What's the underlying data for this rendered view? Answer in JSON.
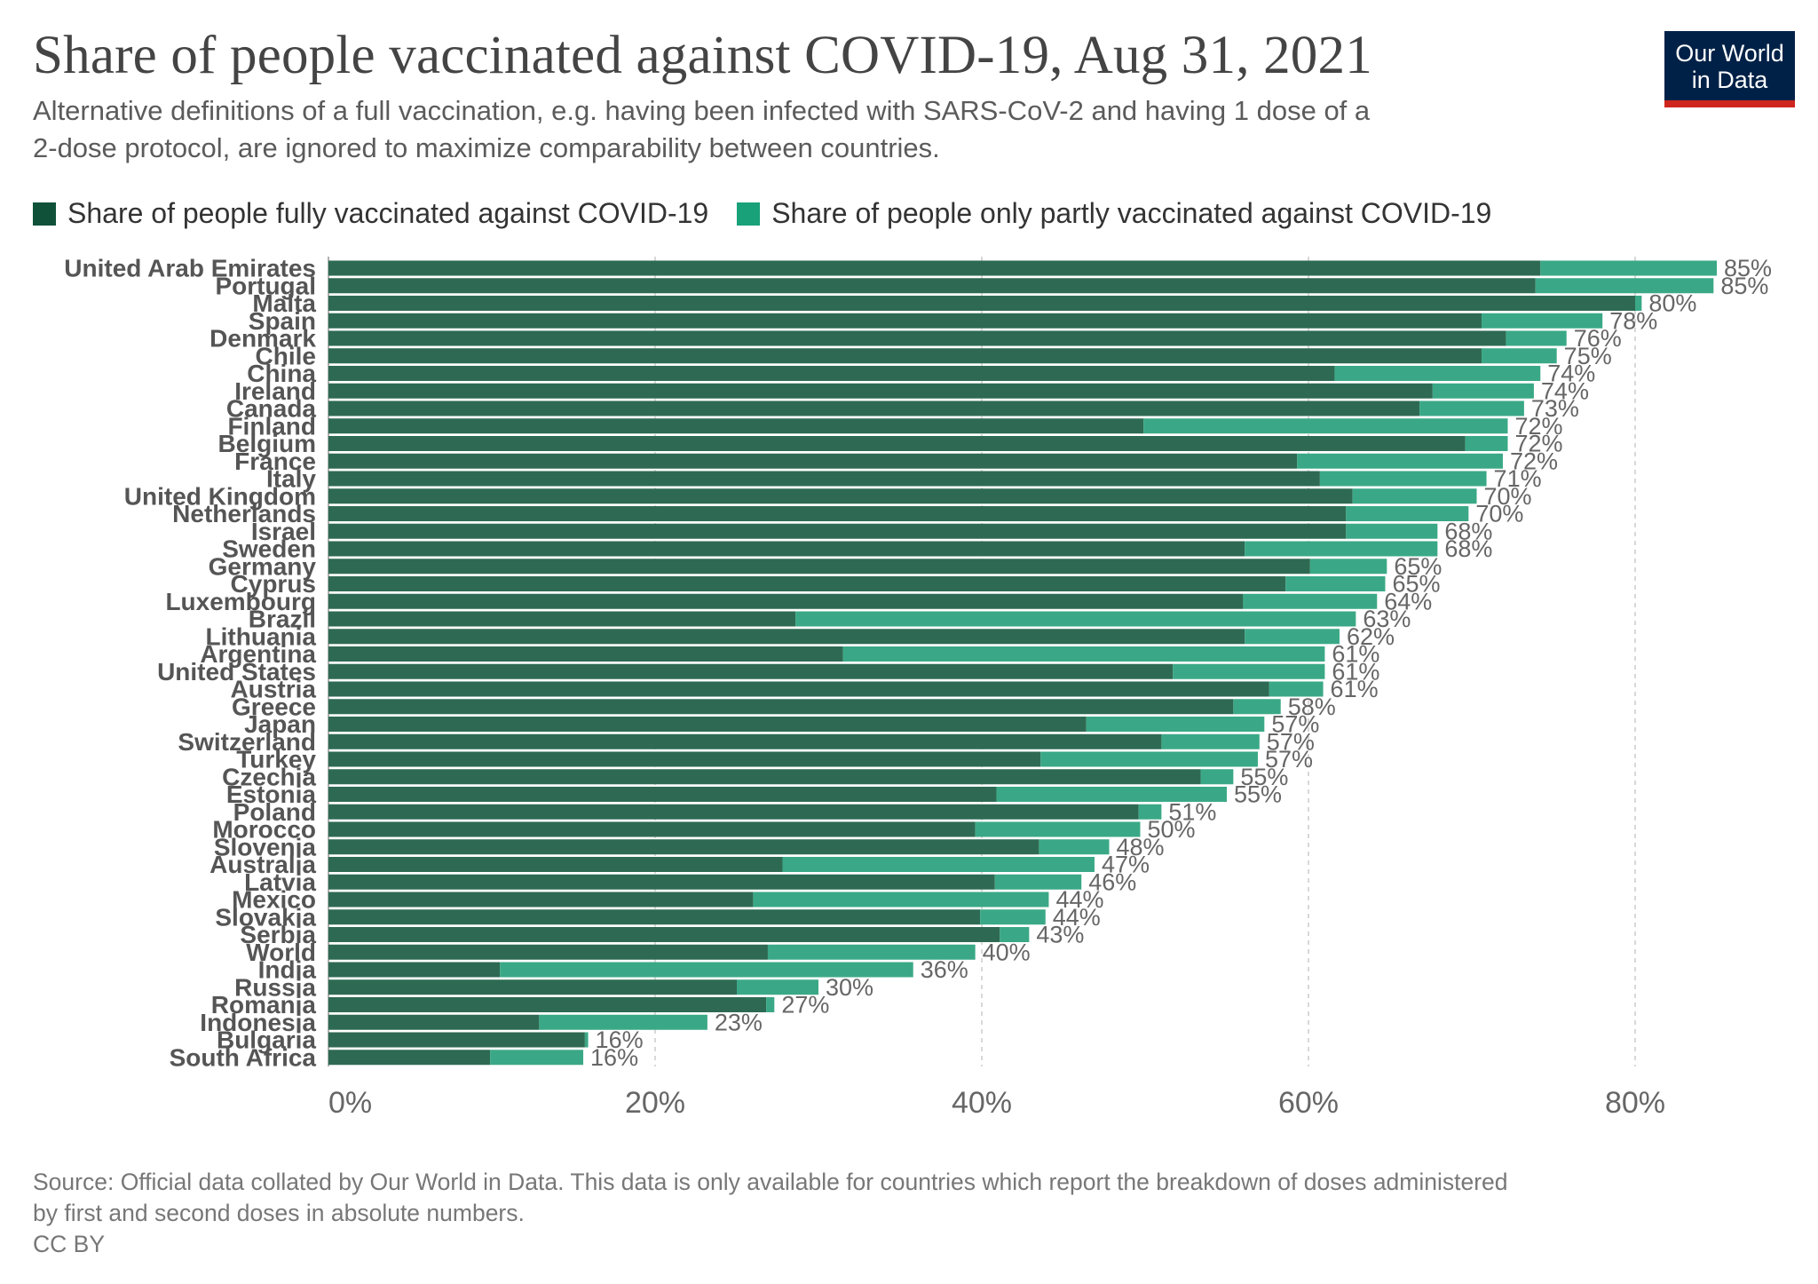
{
  "title": "Share of people vaccinated against COVID-19, Aug 31, 2021",
  "subtitle_lines": [
    "Alternative definitions of a full vaccination, e.g. having been infected with SARS-CoV-2 and having 1 dose of a",
    "2-dose protocol, are ignored to maximize comparability between countries."
  ],
  "logo": {
    "line1": "Our World",
    "line2": "in Data"
  },
  "legend": [
    {
      "label": "Share of people fully vaccinated against COVID-19",
      "color": "#10513a"
    },
    {
      "label": "Share of people only partly vaccinated against COVID-19",
      "color": "#19a17a"
    }
  ],
  "colors": {
    "full_bar": "#2e6a53",
    "partly_bar": "#3aa886",
    "value_label": "#666666",
    "country_label": "#555555",
    "grid": "#cccccc"
  },
  "chart_data": {
    "type": "bar",
    "orientation": "horizontal",
    "stacked": true,
    "title": "Share of people vaccinated against COVID-19, Aug 31, 2021",
    "xlabel": "",
    "ylabel": "",
    "xlim": [
      0,
      85
    ],
    "x_tick_values": [
      0,
      20,
      40,
      60,
      80
    ],
    "x_ticks": [
      "0%",
      "20%",
      "40%",
      "60%",
      "80%"
    ],
    "grid": true,
    "categories": [
      "United Arab Emirates",
      "Portugal",
      "Malta",
      "Spain",
      "Denmark",
      "Chile",
      "China",
      "Ireland",
      "Canada",
      "Finland",
      "Belgium",
      "France",
      "Italy",
      "United Kingdom",
      "Netherlands",
      "Israel",
      "Sweden",
      "Germany",
      "Cyprus",
      "Luxembourg",
      "Brazil",
      "Lithuania",
      "Argentina",
      "United States",
      "Austria",
      "Greece",
      "Japan",
      "Switzerland",
      "Turkey",
      "Czechia",
      "Estonia",
      "Poland",
      "Morocco",
      "Slovenia",
      "Australia",
      "Latvia",
      "Mexico",
      "Slovakia",
      "Serbia",
      "World",
      "India",
      "Russia",
      "Romania",
      "Indonesia",
      "Bulgaria",
      "South Africa"
    ],
    "series": [
      {
        "name": "Share of people fully vaccinated against COVID-19",
        "values": [
          74.2,
          73.9,
          80.0,
          70.6,
          72.1,
          70.6,
          61.6,
          67.6,
          66.8,
          49.9,
          69.6,
          59.3,
          60.7,
          62.7,
          62.3,
          62.3,
          56.1,
          60.1,
          58.6,
          56.0,
          28.6,
          56.1,
          31.5,
          51.7,
          57.6,
          55.4,
          46.4,
          51.0,
          43.6,
          53.4,
          40.9,
          49.6,
          39.6,
          43.5,
          27.8,
          40.8,
          26.0,
          39.9,
          41.1,
          26.9,
          10.5,
          25.0,
          26.8,
          12.9,
          15.7,
          9.9
        ]
      },
      {
        "name": "Share of people only partly vaccinated against COVID-19",
        "values": [
          10.8,
          10.9,
          0.4,
          7.4,
          3.7,
          4.6,
          12.6,
          6.2,
          6.4,
          22.3,
          2.6,
          12.6,
          10.2,
          7.6,
          7.5,
          5.6,
          11.8,
          4.7,
          6.1,
          8.2,
          34.3,
          5.8,
          29.5,
          9.3,
          3.3,
          2.9,
          10.9,
          6.0,
          13.3,
          2.0,
          14.1,
          1.4,
          10.1,
          4.3,
          19.1,
          5.3,
          18.1,
          4.0,
          1.8,
          12.7,
          25.3,
          5.0,
          0.5,
          10.3,
          0.2,
          5.7
        ]
      }
    ],
    "value_labels": [
      "85%",
      "85%",
      "80%",
      "78%",
      "76%",
      "75%",
      "74%",
      "74%",
      "73%",
      "72%",
      "72%",
      "72%",
      "71%",
      "70%",
      "70%",
      "68%",
      "68%",
      "65%",
      "65%",
      "64%",
      "63%",
      "62%",
      "61%",
      "61%",
      "61%",
      "58%",
      "57%",
      "57%",
      "57%",
      "55%",
      "55%",
      "51%",
      "50%",
      "48%",
      "47%",
      "46%",
      "44%",
      "44%",
      "43%",
      "40%",
      "36%",
      "30%",
      "27%",
      "23%",
      "16%",
      "16%"
    ]
  },
  "source_lines": [
    "Source: Official data collated by Our World in Data. This data is only available for countries which report the breakdown of doses administered",
    "by first and second doses in absolute numbers."
  ],
  "license": "CC BY"
}
